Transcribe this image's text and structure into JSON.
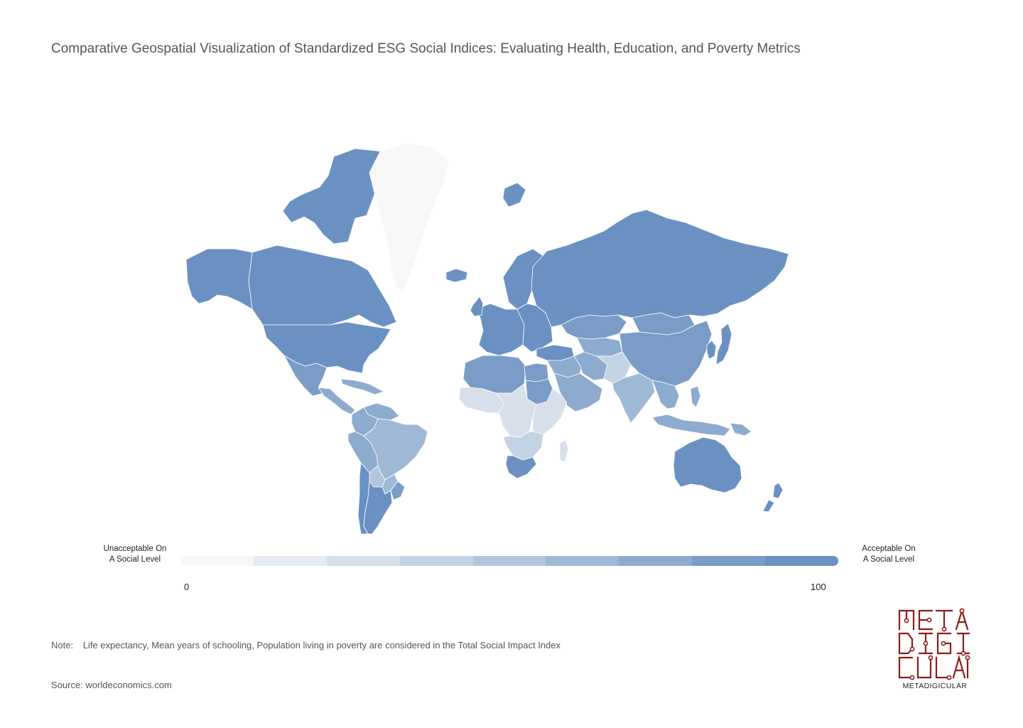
{
  "title": "Comparative Geospatial Visualization of Standardized ESG Social Indices: Evaluating Health, Education, and Poverty Metrics",
  "legend": {
    "low_label_line1": "Unacceptable On",
    "low_label_line2": "A Social Level",
    "high_label_line1": "Acceptable On",
    "high_label_line2": "A Social Level",
    "min": "0",
    "max": "100",
    "scale_colors": [
      "#f7f7f8",
      "#e6ebf2",
      "#d6dfea",
      "#c4d3e4",
      "#b1c6dd",
      "#9fb8d5",
      "#8dabcf",
      "#7a9cc7",
      "#6a91c2"
    ]
  },
  "note": {
    "label": "Note:",
    "text": "Life expectancy, Mean years of schooling, Population living in poverty are considered in the Total Social Impact Index"
  },
  "source": "Source: worldeconomics.com",
  "logo": {
    "text": "METADIGICULAR",
    "color": "#8b1c1c"
  },
  "map_data": {
    "type": "choropleth",
    "metric": "Total Social Impact Index",
    "range": [
      0,
      100
    ],
    "regions": [
      {
        "region": "Canada",
        "level": 100
      },
      {
        "region": "Alaska",
        "level": 100
      },
      {
        "region": "Arctic islands",
        "level": 100
      },
      {
        "region": "United States",
        "level": 100
      },
      {
        "region": "Mexico",
        "level": 85
      },
      {
        "region": "Central America",
        "level": 70
      },
      {
        "region": "Caribbean",
        "level": 75
      },
      {
        "region": "Greenland",
        "level": 0
      },
      {
        "region": "Iceland",
        "level": 100
      },
      {
        "region": "Venezuela",
        "level": 80
      },
      {
        "region": "Colombia",
        "level": 75
      },
      {
        "region": "Peru",
        "level": 75
      },
      {
        "region": "Brazil",
        "level": 65
      },
      {
        "region": "Bolivia",
        "level": 55
      },
      {
        "region": "Paraguay",
        "level": 65
      },
      {
        "region": "Chile",
        "level": 100
      },
      {
        "region": "Argentina",
        "level": 95
      },
      {
        "region": "Uruguay",
        "level": 90
      },
      {
        "region": "Scandinavia",
        "level": 100
      },
      {
        "region": "Western Europe",
        "level": 100
      },
      {
        "region": "Eastern Europe",
        "level": 95
      },
      {
        "region": "United Kingdom",
        "level": 100
      },
      {
        "region": "Russia",
        "level": 100
      },
      {
        "region": "Svalbard",
        "level": 100
      },
      {
        "region": "Turkey",
        "level": 95
      },
      {
        "region": "Kazakhstan",
        "level": 85
      },
      {
        "region": "Central Asia",
        "level": 75
      },
      {
        "region": "Middle East",
        "level": 80
      },
      {
        "region": "Arabian Peninsula",
        "level": 70
      },
      {
        "region": "Iran",
        "level": 80
      },
      {
        "region": "Afghanistan / Pakistan",
        "level": 40
      },
      {
        "region": "India",
        "level": 60
      },
      {
        "region": "Mongolia",
        "level": 85
      },
      {
        "region": "China",
        "level": 85
      },
      {
        "region": "Japan",
        "level": 100
      },
      {
        "region": "Korea",
        "level": 100
      },
      {
        "region": "Southeast Asia",
        "level": 80
      },
      {
        "region": "Indonesia",
        "level": 75
      },
      {
        "region": "Philippines",
        "level": 75
      },
      {
        "region": "Papua New Guinea",
        "level": 70
      },
      {
        "region": "Australia",
        "level": 100
      },
      {
        "region": "New Zealand",
        "level": 100
      },
      {
        "region": "North Africa",
        "level": 85
      },
      {
        "region": "Egypt",
        "level": 90
      },
      {
        "region": "Sudan",
        "level": 90
      },
      {
        "region": "West Africa",
        "level": 20
      },
      {
        "region": "Central Africa",
        "level": 25
      },
      {
        "region": "East Africa",
        "level": 30
      },
      {
        "region": "Southern Africa",
        "level": 40
      },
      {
        "region": "South Africa",
        "level": 100
      },
      {
        "region": "Madagascar",
        "level": 25
      }
    ]
  }
}
